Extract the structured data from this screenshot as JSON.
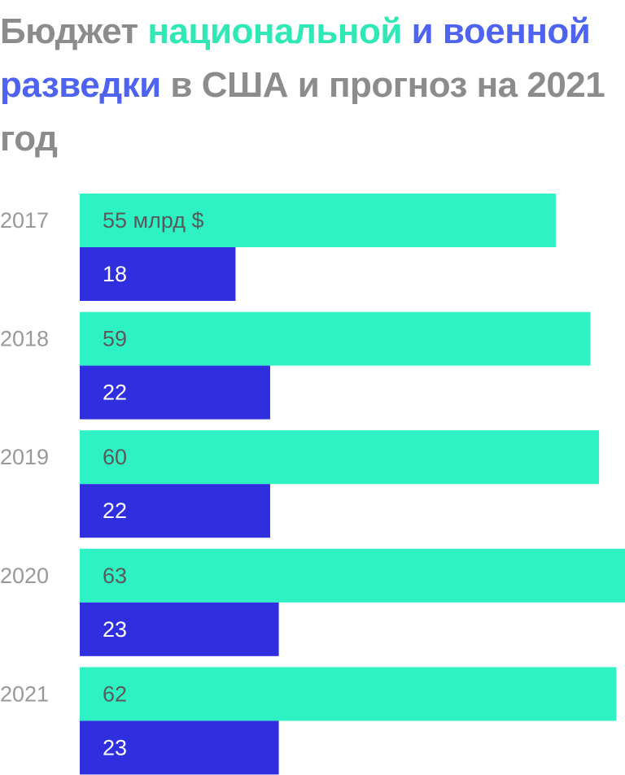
{
  "title": {
    "part1": "Бюджет ",
    "national": "национальной",
    "part2": " ",
    "military": "и военной разведки",
    "part3": " в США и прогноз на 2021 год"
  },
  "colors": {
    "national": "#2ef2c4",
    "military": "#2f2fe0",
    "title_gray": "#8c8c8c",
    "year_gray": "#999999",
    "label_on_national": "#5a5a5a",
    "label_on_military": "#ffffff"
  },
  "chart_data": {
    "type": "bar",
    "orientation": "horizontal",
    "title": "Бюджет национальной и военной разведки в США и прогноз на 2021 год",
    "categories": [
      "2017",
      "2018",
      "2019",
      "2020",
      "2021"
    ],
    "unit": "млрд $",
    "series": [
      {
        "name": "национальной",
        "values": [
          55,
          59,
          60,
          63,
          62
        ],
        "labels": [
          "55 млрд $",
          "59",
          "60",
          "63",
          "62"
        ]
      },
      {
        "name": "военной",
        "values": [
          18,
          22,
          22,
          23,
          23
        ],
        "labels": [
          "18",
          "22",
          "22",
          "23",
          "23"
        ]
      }
    ],
    "xlim": [
      0,
      63
    ],
    "grid": false,
    "legend": "title"
  }
}
